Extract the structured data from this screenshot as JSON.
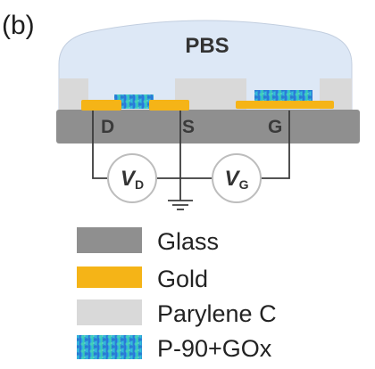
{
  "panel_label": "(b)",
  "electrolyte_label": "PBS",
  "terminals": {
    "drain": "D",
    "source": "S",
    "gate": "G"
  },
  "sources": [
    {
      "symbol": "V",
      "subscript": "D"
    },
    {
      "symbol": "V",
      "subscript": "G"
    }
  ],
  "legend": [
    {
      "label": "Glass",
      "color": "#8f8f8f"
    },
    {
      "label": "Gold",
      "color": "#f5b417"
    },
    {
      "label": "Parylene C",
      "color": "#d9d9d9"
    },
    {
      "label": "P-90+GOx",
      "swatch": "gradient"
    }
  ],
  "colors": {
    "pbs": "#dde8f6",
    "glass": "#8f8f8f",
    "gold": "#f5b417",
    "parylene": "#d9d9d9",
    "wire": "#3c3c3c"
  }
}
